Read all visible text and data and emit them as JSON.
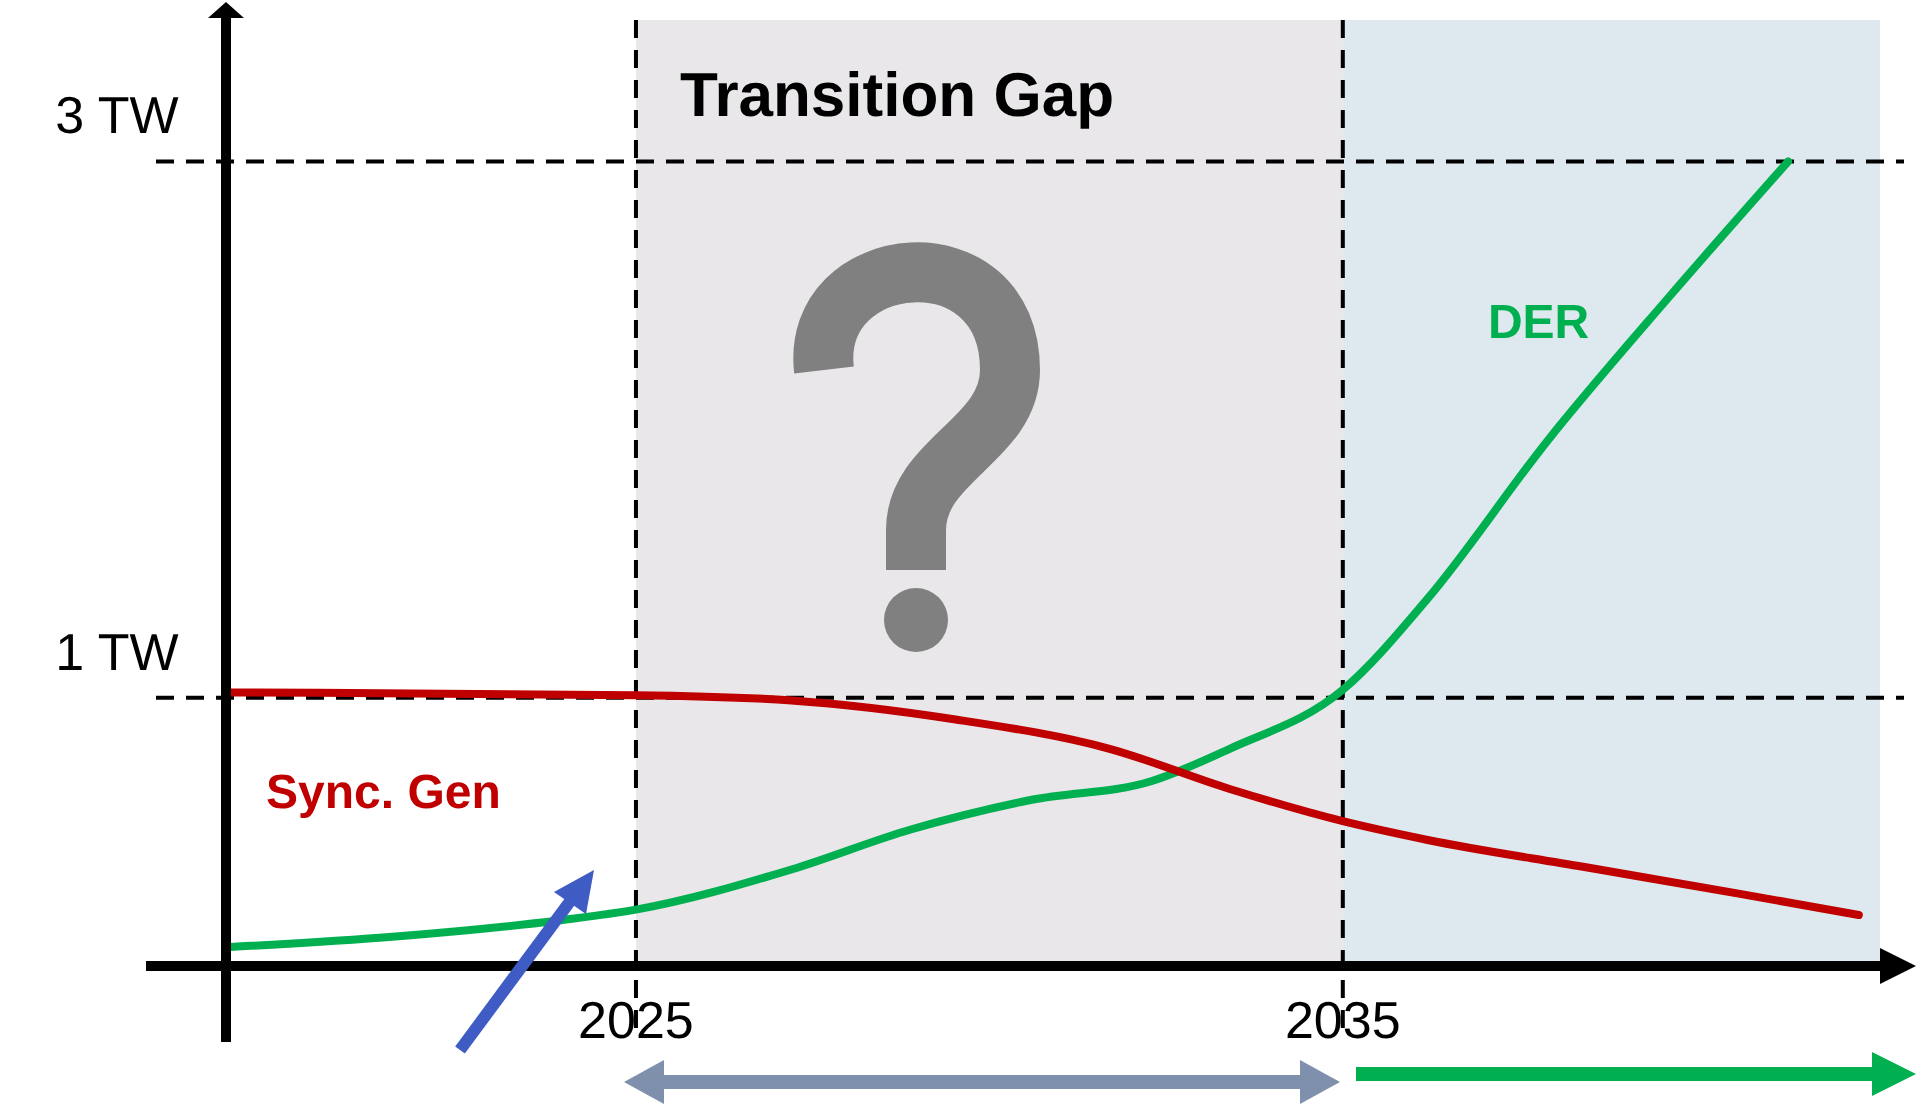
{
  "chart_data": {
    "type": "line",
    "x": [
      2019.2,
      2021.6,
      2023.9,
      2025,
      2027.2,
      2028.9,
      2030.6,
      2032.3,
      2033.4,
      2035,
      2036.2,
      2037.9,
      2039.6,
      2041.3
    ],
    "series": [
      {
        "name": "DER",
        "color": "#00b050",
        "values": [
          0.07,
          0.11,
          0.17,
          0.21,
          0.36,
          0.51,
          0.62,
          0.69,
          0.81,
          1.03,
          1.37,
          1.96,
          2.49,
          3.0
        ]
      },
      {
        "name": "Sync. Gen",
        "color": "#c00000",
        "x": [
          2019.2,
          2025,
          2027.2,
          2029.5,
          2031.7,
          2033.4,
          2035,
          2036.2,
          2038.4,
          2040.6,
          2042.3
        ],
        "values": [
          1.02,
          1.01,
          0.99,
          0.92,
          0.81,
          0.66,
          0.54,
          0.47,
          0.37,
          0.27,
          0.19
        ]
      }
    ],
    "xlim": [
      2019.2,
      2042.6
    ],
    "ylim": [
      0,
      3.55
    ],
    "xticks": [
      2025,
      2035
    ],
    "yticks": [
      {
        "value": 1,
        "label": "1 TW"
      },
      {
        "value": 3,
        "label": "3 TW"
      }
    ],
    "bands": [
      {
        "axis": "x",
        "from": 2025,
        "to": 2035,
        "label": "Transition Gap",
        "color": "#e9e7ea"
      },
      {
        "axis": "x",
        "from": 2035,
        "to": 2042.6,
        "color": "#dde9ee"
      }
    ],
    "ref_lines": [
      {
        "axis": "y",
        "value": 1,
        "color": "#000000",
        "line_style": "dashed"
      },
      {
        "axis": "y",
        "value": 3,
        "color": "#000000",
        "line_style": "dashed"
      },
      {
        "axis": "x",
        "value": 2025,
        "color": "#000000",
        "line_style": "dashed"
      },
      {
        "axis": "x",
        "value": 2035,
        "color": "#000000",
        "line_style": "dashed"
      }
    ],
    "grid": false,
    "marker": "none",
    "line_style": "solid"
  }
}
